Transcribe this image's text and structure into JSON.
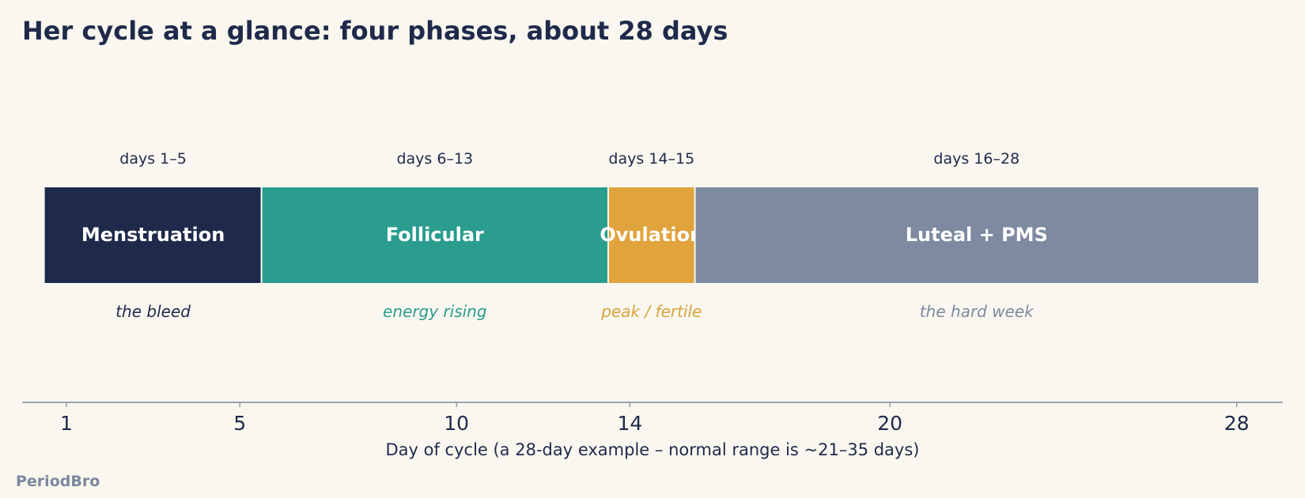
{
  "title": "Her cycle at a glance: four phases, about 28 days",
  "brand": "PeriodBro",
  "chart_data": {
    "type": "bar",
    "orientation": "horizontal-timeline",
    "title": "Her cycle at a glance: four phases, about 28 days",
    "xlabel": "Day of cycle  (a 28-day example – normal range is ~21–35 days)",
    "xlim": [
      0.25,
      28.75
    ],
    "xticks": [
      1,
      5,
      10,
      14,
      20,
      28
    ],
    "grid": false,
    "phases": [
      {
        "name": "Menstruation",
        "start": 1,
        "end": 5,
        "range_label": "days 1–5",
        "note": "the bleed",
        "color": "#1f2a4b",
        "note_color": "#1f2a4b"
      },
      {
        "name": "Follicular",
        "start": 6,
        "end": 13,
        "range_label": "days 6–13",
        "note": "energy rising",
        "color": "#2a9d8f",
        "note_color": "#2a9d8f"
      },
      {
        "name": "Ovulation",
        "start": 14,
        "end": 15,
        "range_label": "days 14–15",
        "note": "peak / fertile",
        "color": "#e1a33c",
        "note_color": "#d9a23c"
      },
      {
        "name": "Luteal + PMS",
        "start": 16,
        "end": 28,
        "range_label": "days 16–28",
        "note": "the hard week",
        "color": "#7d8aa0",
        "note_color": "#7d8aa0"
      }
    ]
  }
}
